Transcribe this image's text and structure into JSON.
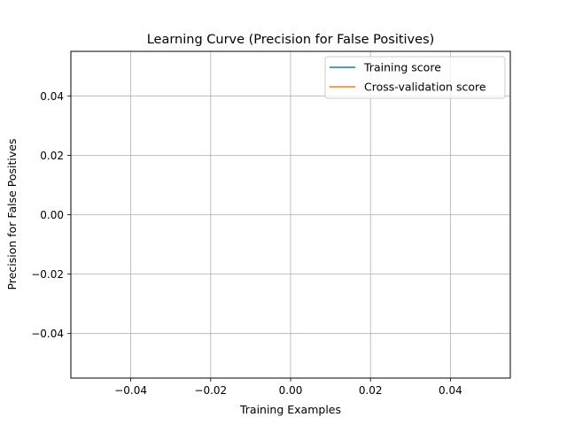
{
  "chart_data": {
    "type": "line",
    "title": "Learning Curve (Precision for False Positives)",
    "xlabel": "Training Examples",
    "ylabel": "Precision for False Positives",
    "xlim": [
      -0.055,
      0.055
    ],
    "ylim": [
      -0.055,
      0.055
    ],
    "x_ticks": [
      -0.04,
      -0.02,
      0.0,
      0.02,
      0.04
    ],
    "y_ticks": [
      -0.04,
      -0.02,
      0.0,
      0.02,
      0.04
    ],
    "x_tick_labels": [
      "−0.04",
      "−0.02",
      "0.00",
      "0.02",
      "0.04"
    ],
    "y_tick_labels": [
      "−0.04",
      "−0.02",
      "0.00",
      "0.02",
      "0.04"
    ],
    "grid": true,
    "legend_position": "upper right",
    "series": [
      {
        "name": "Training score",
        "color": "#1f77b4",
        "x": [],
        "y": []
      },
      {
        "name": "Cross-validation score",
        "color": "#ff7f0e",
        "x": [],
        "y": []
      }
    ]
  }
}
